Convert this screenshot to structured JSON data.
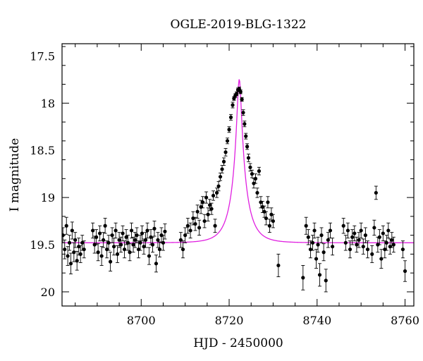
{
  "chart_data": {
    "type": "scatter",
    "title": "OGLE-2019-BLG-1322",
    "xlabel": "HJD - 2450000",
    "ylabel": "I magnitude",
    "xlim": [
      8682,
      8762
    ],
    "ylim": [
      20.15,
      17.37
    ],
    "y_inverted": true,
    "x_ticks": [
      8700,
      8720,
      8740,
      8760
    ],
    "y_ticks": [
      17.5,
      18,
      18.5,
      19,
      19.5,
      20
    ],
    "x_tick_labels": [
      "8700",
      "8720",
      "8740",
      "8760"
    ],
    "y_tick_labels": [
      "17.5",
      "18",
      "18.5",
      "19",
      "19.5",
      "20"
    ],
    "grid": false,
    "model": {
      "color": "#e020e0",
      "t0": 8722.3,
      "tE": 3.5,
      "u0": 0.133,
      "baseline_mag": 19.48,
      "blending_fraction": 0.6
    },
    "series": [
      {
        "marker_color": "#000000",
        "points": [
          [
            8682.2,
            19.4,
            0.08
          ],
          [
            8682.6,
            19.55,
            0.1
          ],
          [
            8683.0,
            19.3,
            0.09
          ],
          [
            8683.3,
            19.62,
            0.1
          ],
          [
            8683.7,
            19.48,
            0.08
          ],
          [
            8684.0,
            19.7,
            0.11
          ],
          [
            8684.3,
            19.35,
            0.09
          ],
          [
            8684.7,
            19.58,
            0.1
          ],
          [
            8685.0,
            19.45,
            0.08
          ],
          [
            8685.4,
            19.67,
            0.1
          ],
          [
            8685.8,
            19.52,
            0.09
          ],
          [
            8686.2,
            19.6,
            0.09
          ],
          [
            8686.6,
            19.48,
            0.08
          ],
          [
            8687.0,
            19.55,
            0.09
          ],
          [
            8689.0,
            19.35,
            0.08
          ],
          [
            8689.4,
            19.5,
            0.09
          ],
          [
            8689.8,
            19.42,
            0.08
          ],
          [
            8690.2,
            19.58,
            0.09
          ],
          [
            8690.6,
            19.38,
            0.08
          ],
          [
            8691.0,
            19.62,
            0.1
          ],
          [
            8691.4,
            19.45,
            0.08
          ],
          [
            8691.8,
            19.3,
            0.08
          ],
          [
            8692.2,
            19.55,
            0.09
          ],
          [
            8692.6,
            19.48,
            0.08
          ],
          [
            8693.0,
            19.68,
            0.1
          ],
          [
            8693.4,
            19.4,
            0.08
          ],
          [
            8693.8,
            19.52,
            0.09
          ],
          [
            8694.2,
            19.35,
            0.08
          ],
          [
            8694.6,
            19.6,
            0.09
          ],
          [
            8695.0,
            19.45,
            0.08
          ],
          [
            8695.4,
            19.5,
            0.08
          ],
          [
            8695.8,
            19.38,
            0.08
          ],
          [
            8696.2,
            19.55,
            0.09
          ],
          [
            8696.6,
            19.42,
            0.08
          ],
          [
            8697.0,
            19.48,
            0.08
          ],
          [
            8697.4,
            19.58,
            0.09
          ],
          [
            8697.8,
            19.35,
            0.08
          ],
          [
            8698.2,
            19.5,
            0.08
          ],
          [
            8698.6,
            19.45,
            0.08
          ],
          [
            8699.0,
            19.4,
            0.08
          ],
          [
            8699.4,
            19.55,
            0.09
          ],
          [
            8699.8,
            19.48,
            0.08
          ],
          [
            8700.2,
            19.38,
            0.08
          ],
          [
            8700.6,
            19.52,
            0.08
          ],
          [
            8701.0,
            19.45,
            0.08
          ],
          [
            8701.4,
            19.35,
            0.08
          ],
          [
            8701.8,
            19.62,
            0.09
          ],
          [
            8702.2,
            19.42,
            0.08
          ],
          [
            8702.6,
            19.5,
            0.08
          ],
          [
            8703.0,
            19.33,
            0.08
          ],
          [
            8703.4,
            19.7,
            0.09
          ],
          [
            8703.8,
            19.45,
            0.08
          ],
          [
            8704.2,
            19.55,
            0.08
          ],
          [
            8704.6,
            19.4,
            0.08
          ],
          [
            8705.0,
            19.48,
            0.08
          ],
          [
            8705.4,
            19.36,
            0.08
          ],
          [
            8709.0,
            19.45,
            0.08
          ],
          [
            8709.5,
            19.55,
            0.09
          ],
          [
            8710.0,
            19.4,
            0.08
          ],
          [
            8710.6,
            19.3,
            0.08
          ],
          [
            8711.2,
            19.35,
            0.08
          ],
          [
            8711.8,
            19.22,
            0.07
          ],
          [
            8712.3,
            19.28,
            0.07
          ],
          [
            8712.8,
            19.15,
            0.07
          ],
          [
            8713.2,
            19.32,
            0.08
          ],
          [
            8713.6,
            19.1,
            0.07
          ],
          [
            8714.0,
            19.05,
            0.06
          ],
          [
            8714.4,
            19.25,
            0.07
          ],
          [
            8714.8,
            19.0,
            0.06
          ],
          [
            8715.2,
            19.18,
            0.07
          ],
          [
            8715.6,
            19.08,
            0.06
          ],
          [
            8716.0,
            19.12,
            0.06
          ],
          [
            8716.4,
            18.98,
            0.05
          ],
          [
            8716.8,
            19.3,
            0.07
          ],
          [
            8717.2,
            18.95,
            0.05
          ],
          [
            8717.6,
            18.88,
            0.05
          ],
          [
            8718.0,
            18.78,
            0.04
          ],
          [
            8718.4,
            18.7,
            0.04
          ],
          [
            8718.8,
            18.62,
            0.04
          ],
          [
            8719.2,
            18.52,
            0.04
          ],
          [
            8719.6,
            18.4,
            0.03
          ],
          [
            8720.0,
            18.28,
            0.03
          ],
          [
            8720.4,
            18.15,
            0.03
          ],
          [
            8720.8,
            18.02,
            0.03
          ],
          [
            8721.1,
            17.95,
            0.02
          ],
          [
            8721.4,
            17.92,
            0.02
          ],
          [
            8721.7,
            17.9,
            0.02
          ],
          [
            8722.0,
            17.86,
            0.02
          ],
          [
            8722.3,
            17.85,
            0.02
          ],
          [
            8722.6,
            17.88,
            0.02
          ],
          [
            8722.9,
            17.96,
            0.02
          ],
          [
            8723.2,
            18.1,
            0.03
          ],
          [
            8723.5,
            18.22,
            0.03
          ],
          [
            8723.8,
            18.35,
            0.03
          ],
          [
            8724.1,
            18.46,
            0.03
          ],
          [
            8724.4,
            18.58,
            0.04
          ],
          [
            8724.8,
            18.68,
            0.04
          ],
          [
            8725.2,
            18.75,
            0.04
          ],
          [
            8725.6,
            18.85,
            0.05
          ],
          [
            8726.0,
            18.8,
            0.05
          ],
          [
            8726.4,
            18.95,
            0.05
          ],
          [
            8726.8,
            18.72,
            0.04
          ],
          [
            8727.2,
            19.05,
            0.06
          ],
          [
            8727.6,
            19.1,
            0.06
          ],
          [
            8728.0,
            19.15,
            0.06
          ],
          [
            8728.4,
            19.22,
            0.07
          ],
          [
            8728.8,
            19.05,
            0.06
          ],
          [
            8729.2,
            19.3,
            0.07
          ],
          [
            8729.6,
            19.18,
            0.07
          ],
          [
            8730.0,
            19.25,
            0.07
          ],
          [
            8731.2,
            19.72,
            0.12
          ],
          [
            8736.8,
            19.85,
            0.13
          ],
          [
            8737.5,
            19.3,
            0.09
          ],
          [
            8738.0,
            19.42,
            0.08
          ],
          [
            8738.5,
            19.55,
            0.09
          ],
          [
            8739.0,
            19.48,
            0.08
          ],
          [
            8739.4,
            19.35,
            0.08
          ],
          [
            8739.8,
            19.65,
            0.1
          ],
          [
            8740.2,
            19.5,
            0.08
          ],
          [
            8740.6,
            19.82,
            0.12
          ],
          [
            8741.0,
            19.4,
            0.08
          ],
          [
            8741.5,
            19.58,
            0.09
          ],
          [
            8742.0,
            19.88,
            0.12
          ],
          [
            8742.5,
            19.45,
            0.08
          ],
          [
            8743.0,
            19.35,
            0.08
          ],
          [
            8743.5,
            19.52,
            0.09
          ],
          [
            8746.0,
            19.3,
            0.08
          ],
          [
            8746.5,
            19.48,
            0.08
          ],
          [
            8747.0,
            19.35,
            0.08
          ],
          [
            8747.5,
            19.55,
            0.09
          ],
          [
            8748.0,
            19.42,
            0.08
          ],
          [
            8748.5,
            19.38,
            0.08
          ],
          [
            8749.0,
            19.5,
            0.08
          ],
          [
            8749.5,
            19.45,
            0.08
          ],
          [
            8750.0,
            19.35,
            0.08
          ],
          [
            8750.5,
            19.52,
            0.08
          ],
          [
            8751.0,
            19.4,
            0.08
          ],
          [
            8751.5,
            19.55,
            0.09
          ],
          [
            8752.5,
            19.6,
            0.09
          ],
          [
            8753.0,
            19.32,
            0.08
          ],
          [
            8753.4,
            18.95,
            0.07
          ],
          [
            8753.8,
            19.5,
            0.08
          ],
          [
            8754.2,
            19.42,
            0.08
          ],
          [
            8754.6,
            19.65,
            0.1
          ],
          [
            8755.0,
            19.38,
            0.08
          ],
          [
            8755.4,
            19.55,
            0.09
          ],
          [
            8755.8,
            19.48,
            0.08
          ],
          [
            8756.2,
            19.35,
            0.08
          ],
          [
            8756.6,
            19.52,
            0.08
          ],
          [
            8757.0,
            19.45,
            0.08
          ],
          [
            8757.4,
            19.5,
            0.08
          ],
          [
            8759.5,
            19.55,
            0.09
          ],
          [
            8760.0,
            19.78,
            0.11
          ]
        ]
      }
    ]
  }
}
